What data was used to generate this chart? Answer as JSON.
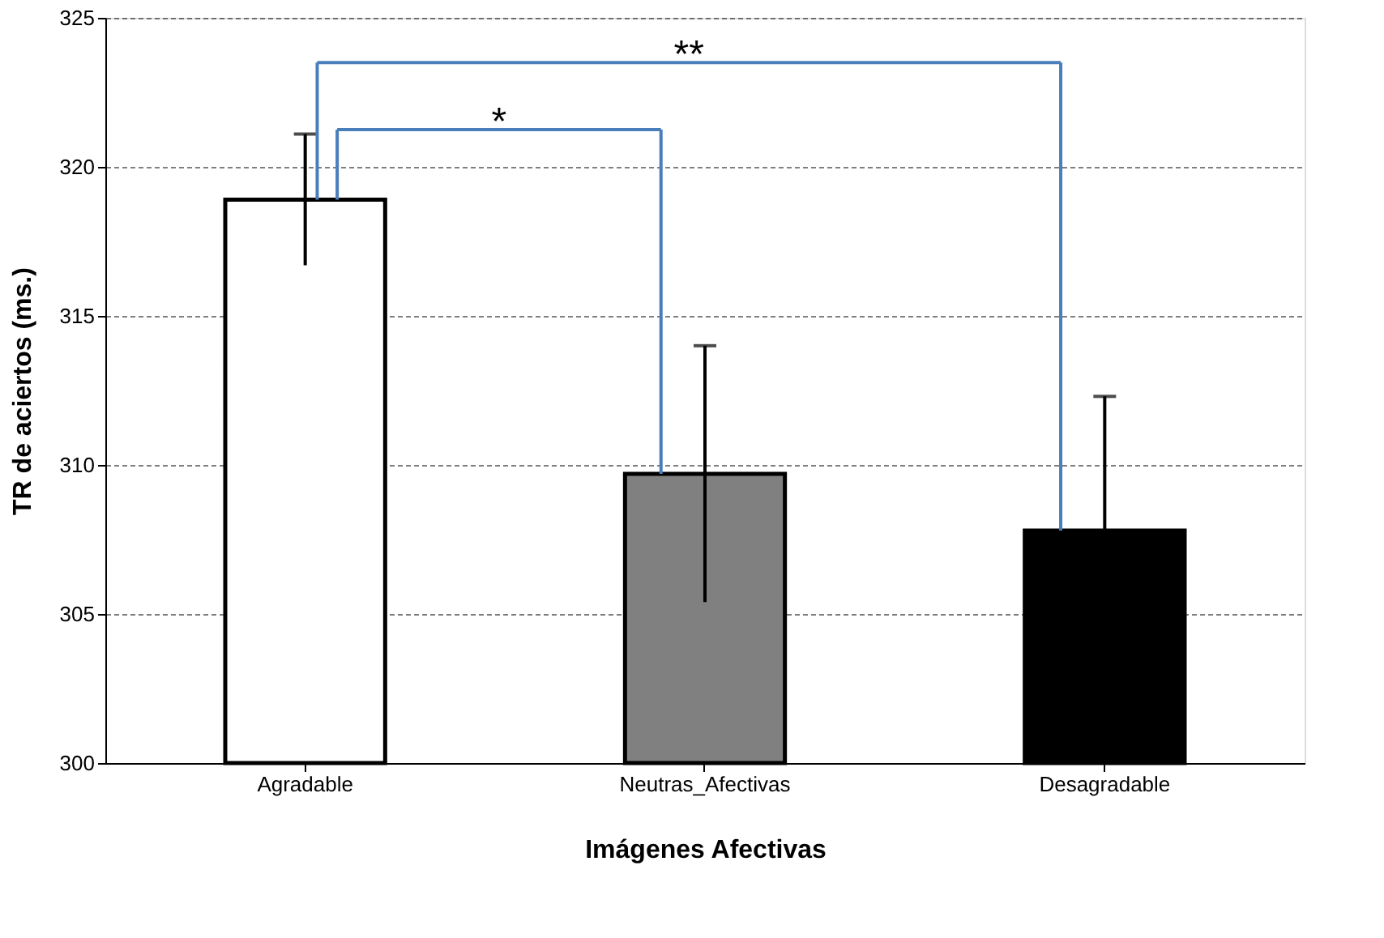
{
  "chart_data": {
    "type": "bar",
    "xlabel": "Imágenes Afectivas",
    "ylabel": "TR de aciertos (ms.)",
    "categories": [
      "Agradable",
      "Neutras_Afectivas",
      "Desagradable"
    ],
    "values": [
      318.9,
      309.7,
      307.8
    ],
    "colors": [
      "#ffffff",
      "#808080",
      "#000000"
    ],
    "errors": [
      2.2,
      4.3,
      4.5
    ],
    "ylim": [
      300,
      325
    ],
    "yticks": [
      300,
      305,
      310,
      315,
      320,
      325
    ],
    "grid": "y",
    "annotations": [
      "*",
      "**"
    ]
  }
}
